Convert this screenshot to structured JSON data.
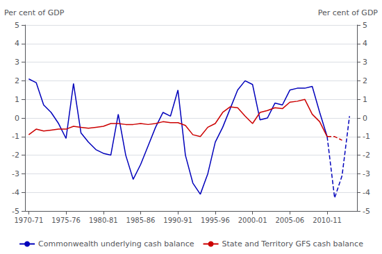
{
  "chart_data": {
    "type": "line",
    "y_label": "Per cent of GDP",
    "y2_label": "Per cent of GDP",
    "xlim": [
      1970.0,
      2014.5
    ],
    "xticks": [
      {
        "value": 1970.5,
        "label": "1970-71"
      },
      {
        "value": 1975.5,
        "label": "1975-76"
      },
      {
        "value": 1980.5,
        "label": "1980-81"
      },
      {
        "value": 1985.5,
        "label": "1985-86"
      },
      {
        "value": 1990.5,
        "label": "1990-91"
      },
      {
        "value": 1995.5,
        "label": "1995-96"
      },
      {
        "value": 2000.5,
        "label": "2000-01"
      },
      {
        "value": 2005.5,
        "label": "2005-06"
      },
      {
        "value": 2010.5,
        "label": "2010-11"
      }
    ],
    "ylim": [
      -5,
      5
    ],
    "yticks": [
      -5,
      -4,
      -3,
      -2,
      -1,
      0,
      1,
      2,
      3,
      4,
      5
    ],
    "y2lim": [
      -5,
      5
    ],
    "y2ticks": [
      -5,
      -4,
      -3,
      -2,
      -1,
      0,
      1,
      2,
      3,
      4,
      5
    ],
    "grid": true,
    "legend": "bottom",
    "series": [
      {
        "name": "Commonwealth underlying cash balance",
        "color": "#0000bb",
        "line_style": "solid",
        "x": [
          1970.5,
          1971.5,
          1972.5,
          1973.5,
          1974.5,
          1975.5,
          1976.5,
          1977.5,
          1978.5,
          1979.5,
          1980.5,
          1981.5,
          1982.5,
          1983.5,
          1984.5,
          1985.5,
          1986.5,
          1987.5,
          1988.5,
          1989.5,
          1990.5,
          1991.5,
          1992.5,
          1993.5,
          1994.5,
          1995.5,
          1996.5,
          1997.5,
          1998.5,
          1999.5,
          2000.5,
          2001.5,
          2002.5,
          2003.5,
          2004.5,
          2005.5,
          2006.5,
          2007.5,
          2008.5,
          2009.5,
          2010.5
        ],
        "values": [
          2.1,
          1.9,
          0.7,
          0.3,
          -0.3,
          -1.1,
          1.85,
          -0.8,
          -1.3,
          -1.7,
          -1.9,
          -2.0,
          0.2,
          -2.0,
          -3.3,
          -2.5,
          -1.5,
          -0.5,
          0.3,
          0.1,
          1.5,
          -2.0,
          -3.5,
          -4.1,
          -3.0,
          -1.3,
          -0.5,
          0.5,
          1.5,
          2.0,
          1.8,
          -0.1,
          0.0,
          0.8,
          0.7,
          1.5,
          1.6,
          1.6,
          1.7,
          0.3,
          -1.0
        ]
      },
      {
        "name": "Commonwealth underlying cash balance",
        "color": "#0000bb",
        "line_style": "dashed",
        "x": [
          2010.5,
          2011.5,
          2012.5,
          2013.5
        ],
        "values": [
          -1.0,
          -4.3,
          -3.1,
          0.1
        ]
      },
      {
        "name": "State and Territory GFS cash balance",
        "color": "#cc0000",
        "line_style": "solid",
        "x": [
          1970.5,
          1971.5,
          1972.5,
          1973.5,
          1974.5,
          1975.5,
          1976.5,
          1977.5,
          1978.5,
          1979.5,
          1980.5,
          1981.5,
          1982.5,
          1983.5,
          1984.5,
          1985.5,
          1986.5,
          1987.5,
          1988.5,
          1989.5,
          1990.5,
          1991.5,
          1992.5,
          1993.5,
          1994.5,
          1995.5,
          1996.5,
          1997.5,
          1998.5,
          1999.5,
          2000.5,
          2001.5,
          2002.5,
          2003.5,
          2004.5,
          2005.5,
          2006.5,
          2007.5,
          2008.5,
          2009.5,
          2010.5
        ],
        "values": [
          -0.9,
          -0.6,
          -0.7,
          -0.65,
          -0.6,
          -0.6,
          -0.45,
          -0.5,
          -0.55,
          -0.5,
          -0.45,
          -0.3,
          -0.3,
          -0.35,
          -0.35,
          -0.3,
          -0.35,
          -0.3,
          -0.2,
          -0.25,
          -0.25,
          -0.4,
          -0.9,
          -1.0,
          -0.5,
          -0.3,
          0.3,
          0.6,
          0.55,
          0.1,
          -0.3,
          0.3,
          0.4,
          0.55,
          0.5,
          0.85,
          0.9,
          1.0,
          0.2,
          -0.2,
          -1.0
        ]
      },
      {
        "name": "State and Territory GFS cash balance",
        "color": "#cc0000",
        "line_style": "dashed",
        "x": [
          2010.5,
          2011.5,
          2012.5
        ],
        "values": [
          -1.0,
          -1.0,
          -1.2
        ]
      }
    ]
  }
}
